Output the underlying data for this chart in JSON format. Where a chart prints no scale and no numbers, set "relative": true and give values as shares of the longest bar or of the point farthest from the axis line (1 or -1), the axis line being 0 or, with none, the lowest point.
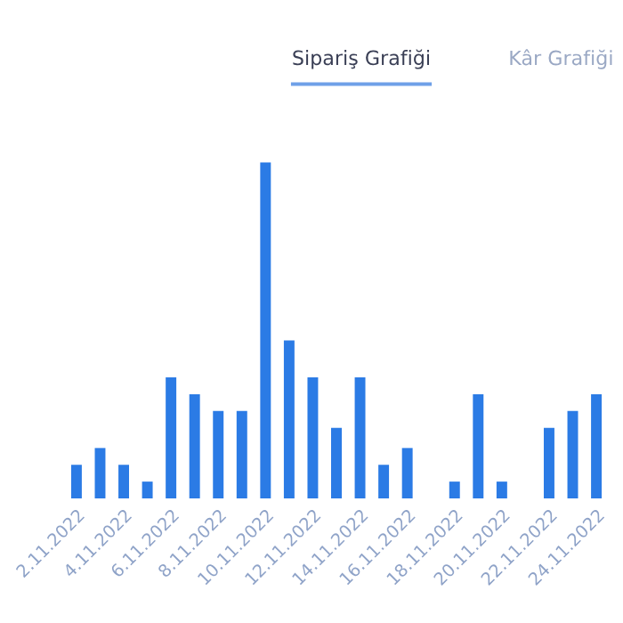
{
  "chart_data": {
    "type": "bar",
    "title": "Sipariş Grafiği",
    "annotations": [
      "Kâr Grafiği"
    ],
    "relative": true,
    "color": "#2b7be5",
    "categories": [
      "2.11.2022",
      null,
      "4.11.2022",
      null,
      "6.11.2022",
      null,
      "8.11.2022",
      null,
      "10.11.2022",
      null,
      "12.11.2022",
      null,
      "14.11.2022",
      null,
      "16.11.2022",
      null,
      "18.11.2022",
      null,
      "20.11.2022",
      null,
      "22.11.2022",
      null,
      "24.11.2022"
    ],
    "values": [
      0.1,
      0.15,
      0.1,
      0.05,
      0.36,
      0.31,
      0.26,
      0.26,
      1,
      0.47,
      0.36,
      0.21,
      0.36,
      0.1,
      0.15,
      0,
      0.05,
      0.31,
      0.05,
      0,
      0.21,
      0.26,
      0.31
    ]
  }
}
